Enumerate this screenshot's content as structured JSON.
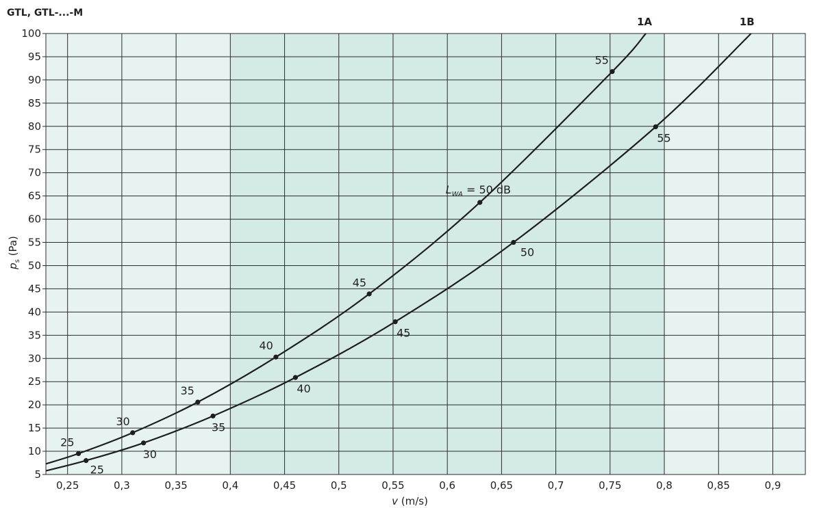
{
  "chart_data": {
    "type": "line",
    "title": "GTL, GTL-...-M",
    "xlabel_var": "v",
    "xlabel_unit": " (m/s)",
    "ylabel_var": "p",
    "ylabel_sub": "s",
    "ylabel_unit": " (Pa)",
    "xlim": [
      0.23,
      0.93
    ],
    "ylim": [
      5,
      100
    ],
    "xticks": [
      0.25,
      0.3,
      0.35,
      0.4,
      0.45,
      0.5,
      0.55,
      0.6,
      0.65,
      0.7,
      0.75,
      0.8,
      0.85,
      0.9
    ],
    "xtick_labels": [
      "0,25",
      "0,3",
      "0,35",
      "0,4",
      "0,45",
      "0,5",
      "0,55",
      "0,6",
      "0,65",
      "0,7",
      "0,75",
      "0,8",
      "0,85",
      "0,9"
    ],
    "yticks": [
      5,
      10,
      15,
      20,
      25,
      30,
      35,
      40,
      45,
      50,
      55,
      60,
      65,
      70,
      75,
      80,
      85,
      90,
      95,
      100
    ],
    "ytick_labels": [
      "5",
      "10",
      "15",
      "20",
      "25",
      "30",
      "35",
      "40",
      "45",
      "50",
      "55",
      "60",
      "65",
      "70",
      "75",
      "80",
      "85",
      "90",
      "95",
      "100"
    ],
    "grid": true,
    "shaded_band": [
      0.4,
      0.8
    ],
    "colors": {
      "band_light": "#e6f3f1",
      "band_dark": "#d3eae6",
      "line": "#1e1e1e",
      "grid": "#2b2b2b"
    },
    "series": [
      {
        "name": "1A",
        "curve_x": [
          0.23,
          0.26,
          0.31,
          0.37,
          0.442,
          0.528,
          0.63,
          0.752,
          0.783
        ],
        "curve_y": [
          7.3,
          9.5,
          14.0,
          20.6,
          30.3,
          43.9,
          63.6,
          91.8,
          100
        ],
        "points": [
          {
            "x": 0.26,
            "y": 9.5,
            "label": "25"
          },
          {
            "x": 0.31,
            "y": 14.0,
            "label": "30"
          },
          {
            "x": 0.37,
            "y": 20.6,
            "label": "35"
          },
          {
            "x": 0.442,
            "y": 30.3,
            "label": "40"
          },
          {
            "x": 0.528,
            "y": 43.9,
            "label": "45"
          },
          {
            "x": 0.63,
            "y": 63.6,
            "label": "50"
          },
          {
            "x": 0.752,
            "y": 91.8,
            "label": "55"
          }
        ],
        "annotation": {
          "var": "L",
          "sub": "WA",
          "text": " = 50 dB"
        }
      },
      {
        "name": "1B",
        "curve_x": [
          0.23,
          0.267,
          0.32,
          0.384,
          0.46,
          0.552,
          0.661,
          0.792,
          0.88
        ],
        "curve_y": [
          5.8,
          8.0,
          11.8,
          17.6,
          25.9,
          37.9,
          55.0,
          79.9,
          100
        ],
        "points": [
          {
            "x": 0.267,
            "y": 8.0,
            "label": "25"
          },
          {
            "x": 0.32,
            "y": 11.8,
            "label": "30"
          },
          {
            "x": 0.384,
            "y": 17.6,
            "label": "35"
          },
          {
            "x": 0.46,
            "y": 25.9,
            "label": "40"
          },
          {
            "x": 0.552,
            "y": 37.9,
            "label": "45"
          },
          {
            "x": 0.661,
            "y": 55.0,
            "label": "50"
          },
          {
            "x": 0.792,
            "y": 79.9,
            "label": "55"
          }
        ]
      }
    ]
  }
}
